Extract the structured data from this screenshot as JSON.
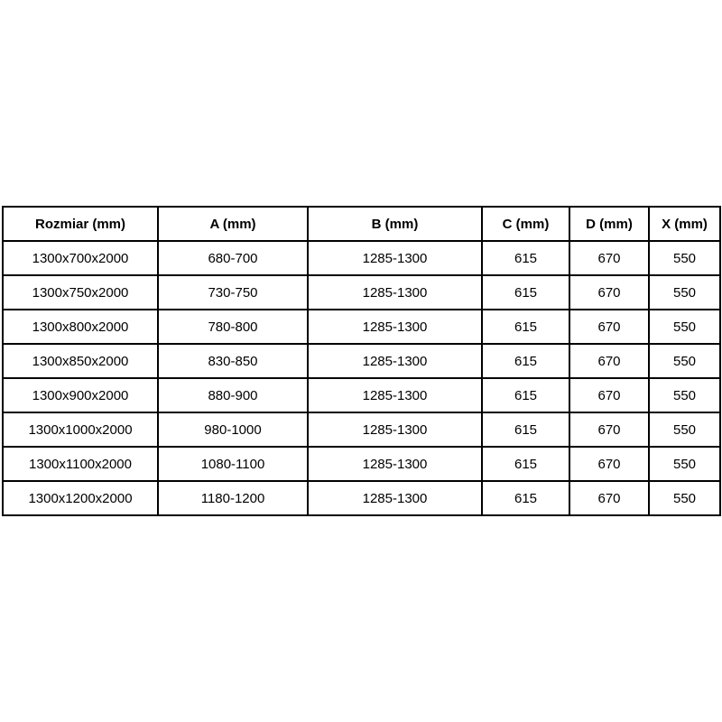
{
  "page": {
    "background_color": "#ffffff",
    "text_color": "#000000",
    "table_border_color": "#000000"
  },
  "table": {
    "columns": [
      "Rozmiar (mm)",
      "A (mm)",
      "B (mm)",
      "C (mm)",
      "D (mm)",
      "X (mm)"
    ],
    "rows": [
      [
        "1300x700x2000",
        "680-700",
        "1285-1300",
        "615",
        "670",
        "550"
      ],
      [
        "1300x750x2000",
        "730-750",
        "1285-1300",
        "615",
        "670",
        "550"
      ],
      [
        "1300x800x2000",
        "780-800",
        "1285-1300",
        "615",
        "670",
        "550"
      ],
      [
        "1300x850x2000",
        "830-850",
        "1285-1300",
        "615",
        "670",
        "550"
      ],
      [
        "1300x900x2000",
        "880-900",
        "1285-1300",
        "615",
        "670",
        "550"
      ],
      [
        "1300x1000x2000",
        "980-1000",
        "1285-1300",
        "615",
        "670",
        "550"
      ],
      [
        "1300x1100x2000",
        "1080-1100",
        "1285-1300",
        "615",
        "670",
        "550"
      ],
      [
        "1300x1200x2000",
        "1180-1200",
        "1285-1300",
        "615",
        "670",
        "550"
      ]
    ]
  }
}
